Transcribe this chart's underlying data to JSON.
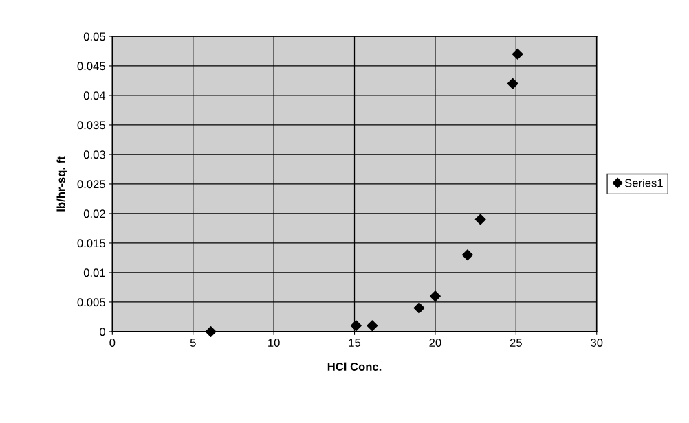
{
  "chart_data": {
    "type": "scatter",
    "xlabel": "HCl Conc.",
    "ylabel": "lb/hr-sq. ft",
    "x": [
      6.1,
      15.1,
      16.1,
      19,
      20,
      22,
      22.8,
      24.8,
      25.1
    ],
    "series": [
      {
        "name": "Series1",
        "color": "#000000",
        "values": [
          0,
          0.001,
          0.001,
          0.004,
          0.006,
          0.013,
          0.019,
          0.042,
          0.047
        ]
      }
    ],
    "xlim": [
      0,
      30
    ],
    "xticks": [
      0,
      5,
      10,
      15,
      20,
      25,
      30
    ],
    "ylim": [
      0,
      0.05
    ],
    "yticks": [
      0,
      0.005,
      0.01,
      0.015,
      0.02,
      0.025,
      0.03,
      0.035,
      0.04,
      0.045,
      0.05
    ],
    "grid": true,
    "legend": "right",
    "marker": "diamond"
  }
}
